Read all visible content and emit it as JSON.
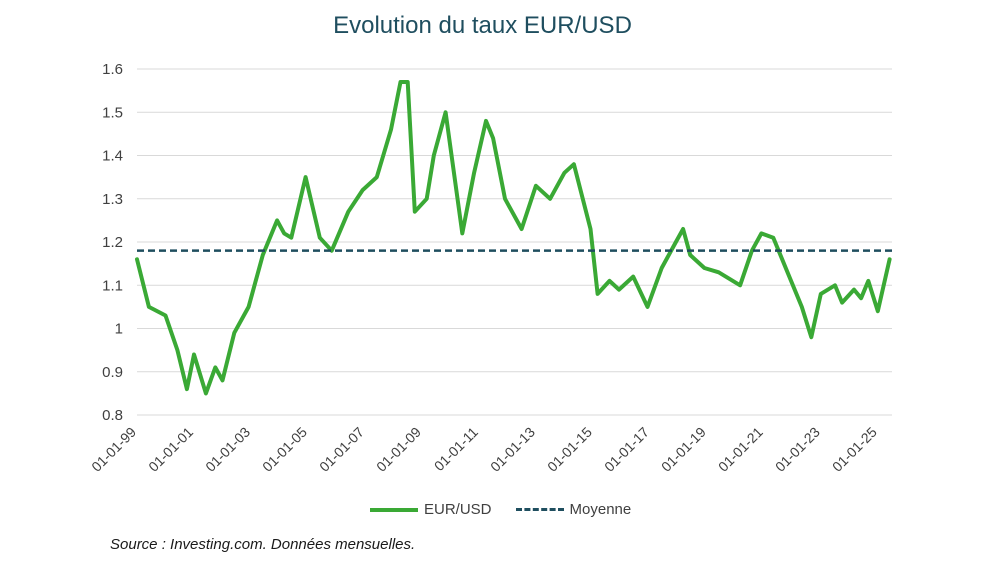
{
  "chart_data": {
    "type": "line",
    "title": "Evolution du taux EUR/USD",
    "ylim": [
      0.8,
      1.6
    ],
    "y_ticks": [
      "0.8",
      "0.9",
      "1",
      "1.1",
      "1.2",
      "1.3",
      "1.4",
      "1.5",
      "1.6"
    ],
    "x_tick_labels": [
      "01-01-99",
      "01-01-01",
      "01-01-03",
      "01-01-05",
      "01-01-07",
      "01-01-09",
      "01-01-11",
      "01-01-13",
      "01-01-15",
      "01-01-17",
      "01-01-19",
      "01-01-21",
      "01-01-23",
      "01-01-25"
    ],
    "grid": "horizontal",
    "legend_position": "bottom",
    "colors": {
      "eurusd": "#3aa935",
      "moyenne": "#1f4e5f"
    },
    "series": [
      {
        "name": "EUR/USD",
        "x": [
          "1999-01",
          "1999-06",
          "2000-01",
          "2000-06",
          "2000-10",
          "2001-01",
          "2001-06",
          "2001-10",
          "2002-01",
          "2002-06",
          "2002-12",
          "2003-06",
          "2003-12",
          "2004-03",
          "2004-06",
          "2004-12",
          "2005-06",
          "2005-11",
          "2006-06",
          "2006-12",
          "2007-06",
          "2007-12",
          "2008-04",
          "2008-07",
          "2008-10",
          "2009-03",
          "2009-06",
          "2009-11",
          "2010-06",
          "2010-11",
          "2011-04",
          "2011-07",
          "2011-12",
          "2012-07",
          "2013-01",
          "2013-07",
          "2014-01",
          "2014-05",
          "2014-12",
          "2015-03",
          "2015-08",
          "2015-12",
          "2016-06",
          "2016-12",
          "2017-06",
          "2017-12",
          "2018-03",
          "2018-06",
          "2018-12",
          "2019-06",
          "2019-12",
          "2020-03",
          "2020-08",
          "2020-12",
          "2021-05",
          "2021-11",
          "2022-05",
          "2022-09",
          "2023-01",
          "2023-07",
          "2023-10",
          "2024-03",
          "2024-06",
          "2024-09",
          "2025-01",
          "2025-06"
        ],
        "y": [
          1.16,
          1.05,
          1.03,
          0.95,
          0.86,
          0.94,
          0.85,
          0.91,
          0.88,
          0.99,
          1.05,
          1.17,
          1.25,
          1.22,
          1.21,
          1.35,
          1.21,
          1.18,
          1.27,
          1.32,
          1.35,
          1.46,
          1.57,
          1.57,
          1.27,
          1.3,
          1.4,
          1.5,
          1.22,
          1.36,
          1.48,
          1.44,
          1.3,
          1.23,
          1.33,
          1.3,
          1.36,
          1.38,
          1.23,
          1.08,
          1.11,
          1.09,
          1.12,
          1.05,
          1.14,
          1.2,
          1.23,
          1.17,
          1.14,
          1.13,
          1.11,
          1.1,
          1.18,
          1.22,
          1.21,
          1.13,
          1.05,
          0.98,
          1.08,
          1.1,
          1.06,
          1.09,
          1.07,
          1.11,
          1.04,
          1.16
        ]
      },
      {
        "name": "Moyenne",
        "value": 1.18
      }
    ]
  },
  "legend": {
    "eurusd": "EUR/USD",
    "moyenne": "Moyenne"
  },
  "source": "Source : Investing.com. Données mensuelles."
}
